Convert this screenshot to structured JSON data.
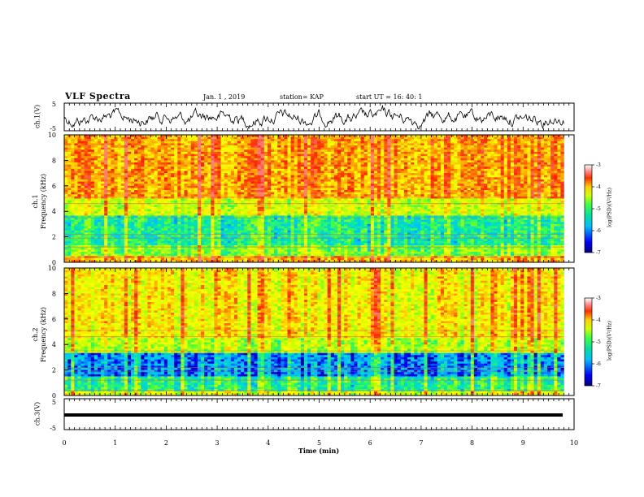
{
  "header": {
    "title": "VLF Spectra",
    "date": "Jan. 1 , 2019",
    "station": "station= KAP",
    "start": "start UT = 16: 40: 1"
  },
  "chart_data": [
    {
      "type": "line",
      "panel": "ch1-voltage",
      "ylabel": "ch.1(V)",
      "ylim": [
        -5,
        5
      ],
      "yticks": [
        -5,
        5
      ],
      "xlim": [
        0,
        10
      ],
      "series": [
        {
          "values_desc": "noisy voltage trace fluctuating around 0 V",
          "color": "#000000"
        }
      ]
    },
    {
      "type": "heatmap",
      "panel": "ch1-spectrogram",
      "ylabel": "ch.1\nFrequency (kHz)",
      "ylim": [
        0,
        10
      ],
      "yticks": [
        0,
        2,
        4,
        6,
        8,
        10
      ],
      "xlim": [
        0,
        10
      ],
      "colorbar": {
        "label": "log(PSD)(V²/Hz)",
        "range": [
          -7,
          -3
        ],
        "ticks": [
          -7,
          -6,
          -5,
          -4,
          -3
        ]
      }
    },
    {
      "type": "heatmap",
      "panel": "ch2-spectrogram",
      "ylabel": "ch.2\nFrequency (kHz)",
      "ylim": [
        0,
        10
      ],
      "yticks": [
        0,
        2,
        4,
        6,
        8,
        10
      ],
      "xlim": [
        0,
        10
      ],
      "colorbar": {
        "label": "log(PSD)(V²/Hz)",
        "range": [
          -7,
          -3
        ],
        "ticks": [
          -7,
          -6,
          -5,
          -4,
          -3
        ]
      }
    },
    {
      "type": "line",
      "panel": "ch3-voltage",
      "ylabel": "ch.3(V)",
      "ylim": [
        -5,
        5
      ],
      "yticks": [
        -5,
        5
      ],
      "xlim": [
        0,
        10
      ],
      "series": [
        {
          "values_desc": "flat trace at about 0 V",
          "color": "#000000"
        }
      ]
    }
  ],
  "xaxis": {
    "label": "Time (min)",
    "ticks": [
      0,
      1,
      2,
      3,
      4,
      5,
      6,
      7,
      8,
      9,
      10
    ]
  },
  "colors": {
    "colormap": [
      "#00008b",
      "#0000ff",
      "#00bfff",
      "#00e5c0",
      "#40ff40",
      "#c8ff00",
      "#ffff00",
      "#ffa000",
      "#ff2000",
      "#ff8080",
      "#ffffff"
    ]
  }
}
